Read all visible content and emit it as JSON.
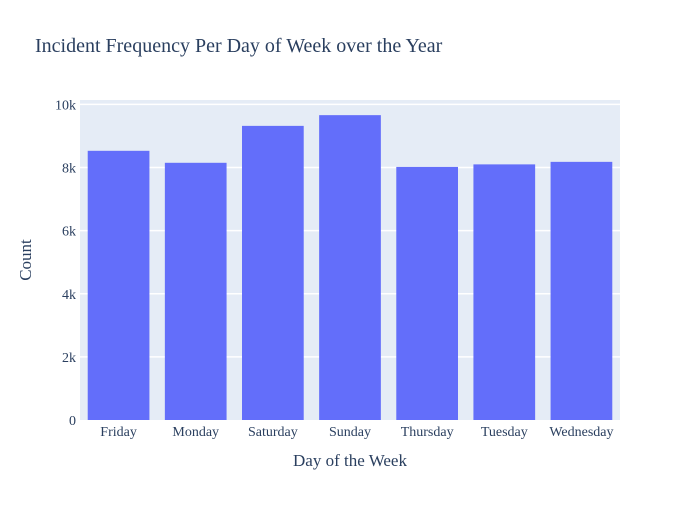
{
  "chart_data": {
    "type": "bar",
    "title": "Incident Frequency Per Day of Week over the Year",
    "xlabel": "Day of the Week",
    "ylabel": "Count",
    "categories": [
      "Friday",
      "Monday",
      "Saturday",
      "Sunday",
      "Thursday",
      "Tuesday",
      "Wednesday"
    ],
    "values": [
      8530,
      8150,
      9320,
      9660,
      8020,
      8100,
      8180
    ],
    "ylim": [
      0,
      10140
    ],
    "yticks": [
      0,
      2000,
      4000,
      6000,
      8000,
      10000
    ],
    "ytick_labels": [
      "0",
      "2k",
      "4k",
      "6k",
      "8k",
      "10k"
    ],
    "grid": true,
    "legend": "none",
    "colors": {
      "bar": "#636efa",
      "plot_bg": "#e5ecf6",
      "grid": "#ffffff",
      "text": "#2a3f5f"
    }
  }
}
